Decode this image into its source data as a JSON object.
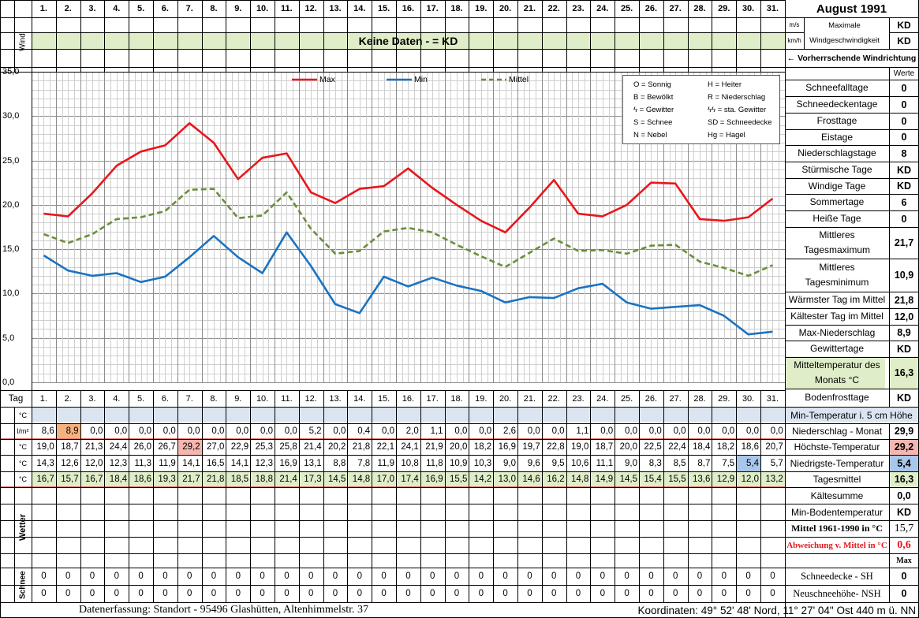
{
  "header": {
    "month_title": "August 1991",
    "days": [
      "1.",
      "2.",
      "3.",
      "4.",
      "5.",
      "6.",
      "7.",
      "8.",
      "9.",
      "10.",
      "11.",
      "12.",
      "13.",
      "14.",
      "15.",
      "16.",
      "17.",
      "18.",
      "19.",
      "20.",
      "21.",
      "22.",
      "23.",
      "24.",
      "25.",
      "26.",
      "27.",
      "28.",
      "29.",
      "30.",
      "31."
    ],
    "wind_label": "Wind",
    "unit_ms": "m/s",
    "unit_kmh": "km/h",
    "max_wind_label": "Maximale Windgeschwindigkeit",
    "max_wind_ms": "KD",
    "max_wind_kmh": "KD",
    "no_data_banner": "Keine Daten -  = KD",
    "prevailing_wind": "← Vorherrschende Windrichtung"
  },
  "legend": {
    "max": "Max",
    "min": "Min",
    "mittel": "Mittel",
    "codes": [
      [
        "O = Sonnig",
        "H = Heiter"
      ],
      [
        "B = Bewölkt",
        "R = Niederschlag"
      ],
      [
        "ϟ = Gewitter",
        "ϟϟ = sta. Gewitter"
      ],
      [
        "S = Schnee",
        "SD = Schneedecke"
      ],
      [
        "N = Nebel",
        "Hg = Hagel"
      ]
    ]
  },
  "stats": {
    "header": "Werte",
    "items": [
      {
        "label": "Schneefalltage",
        "value": "0"
      },
      {
        "label": "Schneedeckentage",
        "value": "0"
      },
      {
        "label": "Frosttage",
        "value": "0"
      },
      {
        "label": "Eistage",
        "value": "0"
      },
      {
        "label": "Niederschlagstage",
        "value": "8"
      },
      {
        "label": "Stürmische Tage",
        "value": "KD"
      },
      {
        "label": "Windige Tage",
        "value": "KD"
      },
      {
        "label": "Sommertage",
        "value": "6"
      },
      {
        "label": "Heiße Tage",
        "value": "0"
      },
      {
        "label": "Mittleres Tagesmaximum",
        "value": "21,7"
      },
      {
        "label": "Mittleres Tagesminimum",
        "value": "10,9"
      },
      {
        "label": "Wärmster Tag im Mittel",
        "value": "21,8"
      },
      {
        "label": "Kältester Tag im Mittel",
        "value": "12,0"
      },
      {
        "label": "Max-Niederschlag",
        "value": "8,9"
      },
      {
        "label": "Gewittertage",
        "value": "KD"
      },
      {
        "label": "Mitteltemperatur des Monats °C",
        "value": "16,3"
      },
      {
        "label": "Bodenfrosttage",
        "value": "KD"
      }
    ]
  },
  "table": {
    "tag_label": "Tag",
    "rows": [
      {
        "unit": "°C",
        "values": [
          "",
          "",
          "",
          "",
          "",
          "",
          "",
          "",
          "",
          "",
          "",
          "",
          "",
          "",
          "",
          "",
          "",
          "",
          "",
          "",
          "",
          "",
          "",
          "",
          "",
          "",
          "",
          "",
          "",
          "",
          ""
        ],
        "label": "Min-Temperatur i. 5 cm Höhe",
        "summary": ""
      },
      {
        "unit": "l/m²",
        "values": [
          "8,6",
          "8,9",
          "0,0",
          "0,0",
          "0,0",
          "0,0",
          "0,0",
          "0,0",
          "0,0",
          "0,0",
          "0,0",
          "5,2",
          "0,0",
          "0,4",
          "0,0",
          "2,0",
          "1,1",
          "0,0",
          "0,0",
          "2,6",
          "0,0",
          "0,0",
          "1,1",
          "0,0",
          "0,0",
          "0,0",
          "0,0",
          "0,0",
          "0,0",
          "0,0",
          "0,0"
        ],
        "label": "Niederschlag - Monat",
        "summary": "29,9"
      },
      {
        "unit": "°C",
        "values": [
          "19,0",
          "18,7",
          "21,3",
          "24,4",
          "26,0",
          "26,7",
          "29,2",
          "27,0",
          "22,9",
          "25,3",
          "25,8",
          "21,4",
          "20,2",
          "21,8",
          "22,1",
          "24,1",
          "21,9",
          "20,0",
          "18,2",
          "16,9",
          "19,7",
          "22,8",
          "19,0",
          "18,7",
          "20,0",
          "22,5",
          "22,4",
          "18,4",
          "18,2",
          "18,6",
          "20,7"
        ],
        "label": "Höchste-Temperatur",
        "summary": "29,2"
      },
      {
        "unit": "°C",
        "values": [
          "14,3",
          "12,6",
          "12,0",
          "12,3",
          "11,3",
          "11,9",
          "14,1",
          "16,5",
          "14,1",
          "12,3",
          "16,9",
          "13,1",
          "8,8",
          "7,8",
          "11,9",
          "10,8",
          "11,8",
          "10,9",
          "10,3",
          "9,0",
          "9,6",
          "9,5",
          "10,6",
          "11,1",
          "9,0",
          "8,3",
          "8,5",
          "8,7",
          "7,5",
          "5,4",
          "5,7"
        ],
        "label": "Niedrigste-Temperatur",
        "summary": "5,4"
      },
      {
        "unit": "°C",
        "values": [
          "16,7",
          "15,7",
          "16,7",
          "18,4",
          "18,6",
          "19,3",
          "21,7",
          "21,8",
          "18,5",
          "18,8",
          "21,4",
          "17,3",
          "14,5",
          "14,8",
          "17,0",
          "17,4",
          "16,9",
          "15,5",
          "14,2",
          "13,0",
          "14,6",
          "16,2",
          "14,8",
          "14,9",
          "14,5",
          "15,4",
          "15,5",
          "13,6",
          "12,9",
          "12,0",
          "13,2"
        ],
        "label": "Tagesmittel",
        "summary": "16,3"
      }
    ],
    "extra_rows": [
      {
        "label": "Kältesumme",
        "value": "0,0"
      },
      {
        "label": "Min-Bodentemperatur",
        "value": "KD"
      },
      {
        "label": "Mittel 1961-1990 in °C",
        "value": "15,7"
      },
      {
        "label": "Abweichung v. Mittel in °C",
        "value": "0,6"
      }
    ],
    "max_header": "Max",
    "wetter_label": "Wetter",
    "schnee_label": "Schnee",
    "snow_rows": [
      {
        "values": [
          "0",
          "0",
          "0",
          "0",
          "0",
          "0",
          "0",
          "0",
          "0",
          "0",
          "0",
          "0",
          "0",
          "0",
          "0",
          "0",
          "0",
          "0",
          "0",
          "0",
          "0",
          "0",
          "0",
          "0",
          "0",
          "0",
          "0",
          "0",
          "0",
          "0",
          "0"
        ],
        "label": "Schneedecke -   SH",
        "summary": "0"
      },
      {
        "values": [
          "0",
          "0",
          "0",
          "0",
          "0",
          "0",
          "0",
          "0",
          "0",
          "0",
          "0",
          "0",
          "0",
          "0",
          "0",
          "0",
          "0",
          "0",
          "0",
          "0",
          "0",
          "0",
          "0",
          "0",
          "0",
          "0",
          "0",
          "0",
          "0",
          "0",
          "0"
        ],
        "label": "Neuschneehöhe- NSH",
        "summary": "0"
      }
    ]
  },
  "footer": {
    "left": "Datenerfassung:  Standort -   95496  Glashütten, Altenhimmelstr. 37",
    "right": "Koordinaten:  49° 52' 48' Nord,  11° 27' 04\" Ost   440 m ü. NN"
  },
  "colors": {
    "max": "#e8161b",
    "min": "#1a73c2",
    "mittel": "#6a8e3a",
    "banner": "#dfeec9",
    "highlight_max": "#f4b6b0",
    "highlight_min": "#a9c7ea",
    "precip_highlight": "#f6b27e",
    "avg_row": "#dfeec9",
    "min5_row": "#dbe5f1"
  },
  "chart_data": {
    "type": "line",
    "x": [
      "1.",
      "2.",
      "3.",
      "4.",
      "5.",
      "6.",
      "7.",
      "8.",
      "9.",
      "10.",
      "11.",
      "12.",
      "13.",
      "14.",
      "15.",
      "16.",
      "17.",
      "18.",
      "19.",
      "20.",
      "21.",
      "22.",
      "23.",
      "24.",
      "25.",
      "26.",
      "27.",
      "28.",
      "29.",
      "30.",
      "31."
    ],
    "series": [
      {
        "name": "Max",
        "values": [
          19.0,
          18.7,
          21.3,
          24.4,
          26.0,
          26.7,
          29.2,
          27.0,
          22.9,
          25.3,
          25.8,
          21.4,
          20.2,
          21.8,
          22.1,
          24.1,
          21.9,
          20.0,
          18.2,
          16.9,
          19.7,
          22.8,
          19.0,
          18.7,
          20.0,
          22.5,
          22.4,
          18.4,
          18.2,
          18.6,
          20.7
        ]
      },
      {
        "name": "Min",
        "values": [
          14.3,
          12.6,
          12.0,
          12.3,
          11.3,
          11.9,
          14.1,
          16.5,
          14.1,
          12.3,
          16.9,
          13.1,
          8.8,
          7.8,
          11.9,
          10.8,
          11.8,
          10.9,
          10.3,
          9.0,
          9.6,
          9.5,
          10.6,
          11.1,
          9.0,
          8.3,
          8.5,
          8.7,
          7.5,
          5.4,
          5.7
        ]
      },
      {
        "name": "Mittel",
        "values": [
          16.7,
          15.7,
          16.7,
          18.4,
          18.6,
          19.3,
          21.7,
          21.8,
          18.5,
          18.8,
          21.4,
          17.3,
          14.5,
          14.8,
          17.0,
          17.4,
          16.9,
          15.5,
          14.2,
          13.0,
          14.6,
          16.2,
          14.8,
          14.9,
          14.5,
          15.4,
          15.5,
          13.6,
          12.9,
          12.0,
          13.2
        ]
      }
    ],
    "y_ticks": [
      "0,0",
      "5,0",
      "10,0",
      "15,0",
      "20,0",
      "25,0",
      "30,0",
      "35,0"
    ],
    "ylim": [
      0,
      35
    ],
    "grid": true,
    "legend_position": "top"
  }
}
